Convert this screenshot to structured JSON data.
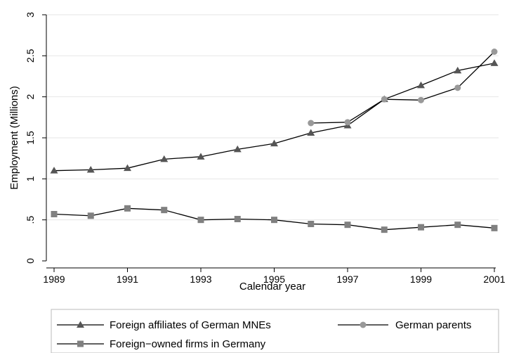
{
  "chart_data": {
    "type": "line",
    "title": "",
    "xlabel": "Calendar year",
    "ylabel": "Employment (Millions)",
    "xlim": [
      1989,
      2001
    ],
    "ylim": [
      0,
      3
    ],
    "x_ticks": [
      "1989",
      "1991",
      "1993",
      "1995",
      "1997",
      "1999",
      "2001"
    ],
    "y_ticks": [
      "0",
      ".5",
      "1",
      "1.5",
      "2",
      "2.5",
      "3"
    ],
    "grid": "horizontal",
    "legend_position": "bottom",
    "series": [
      {
        "name": "Foreign affiliates of German MNEs",
        "marker": "triangle",
        "color": "#555555",
        "x": [
          1989,
          1990,
          1991,
          1992,
          1993,
          1994,
          1995,
          1996,
          1997,
          1998,
          1999,
          2000,
          2001
        ],
        "values": [
          1.1,
          1.11,
          1.13,
          1.24,
          1.27,
          1.36,
          1.43,
          1.56,
          1.65,
          1.97,
          2.14,
          2.32,
          2.41
        ]
      },
      {
        "name": "German parents",
        "marker": "circle",
        "color": "#999999",
        "x": [
          1996,
          1997,
          1998,
          1999,
          2000,
          2001
        ],
        "values": [
          1.68,
          1.69,
          1.97,
          1.96,
          2.11,
          2.55
        ]
      },
      {
        "name": "Foreign−owned firms in Germany",
        "marker": "square",
        "color": "#808080",
        "x": [
          1989,
          1990,
          1991,
          1992,
          1993,
          1994,
          1995,
          1996,
          1997,
          1998,
          1999,
          2000,
          2001
        ],
        "values": [
          0.57,
          0.55,
          0.64,
          0.62,
          0.5,
          0.51,
          0.5,
          0.45,
          0.44,
          0.38,
          0.41,
          0.44,
          0.4
        ]
      }
    ]
  }
}
